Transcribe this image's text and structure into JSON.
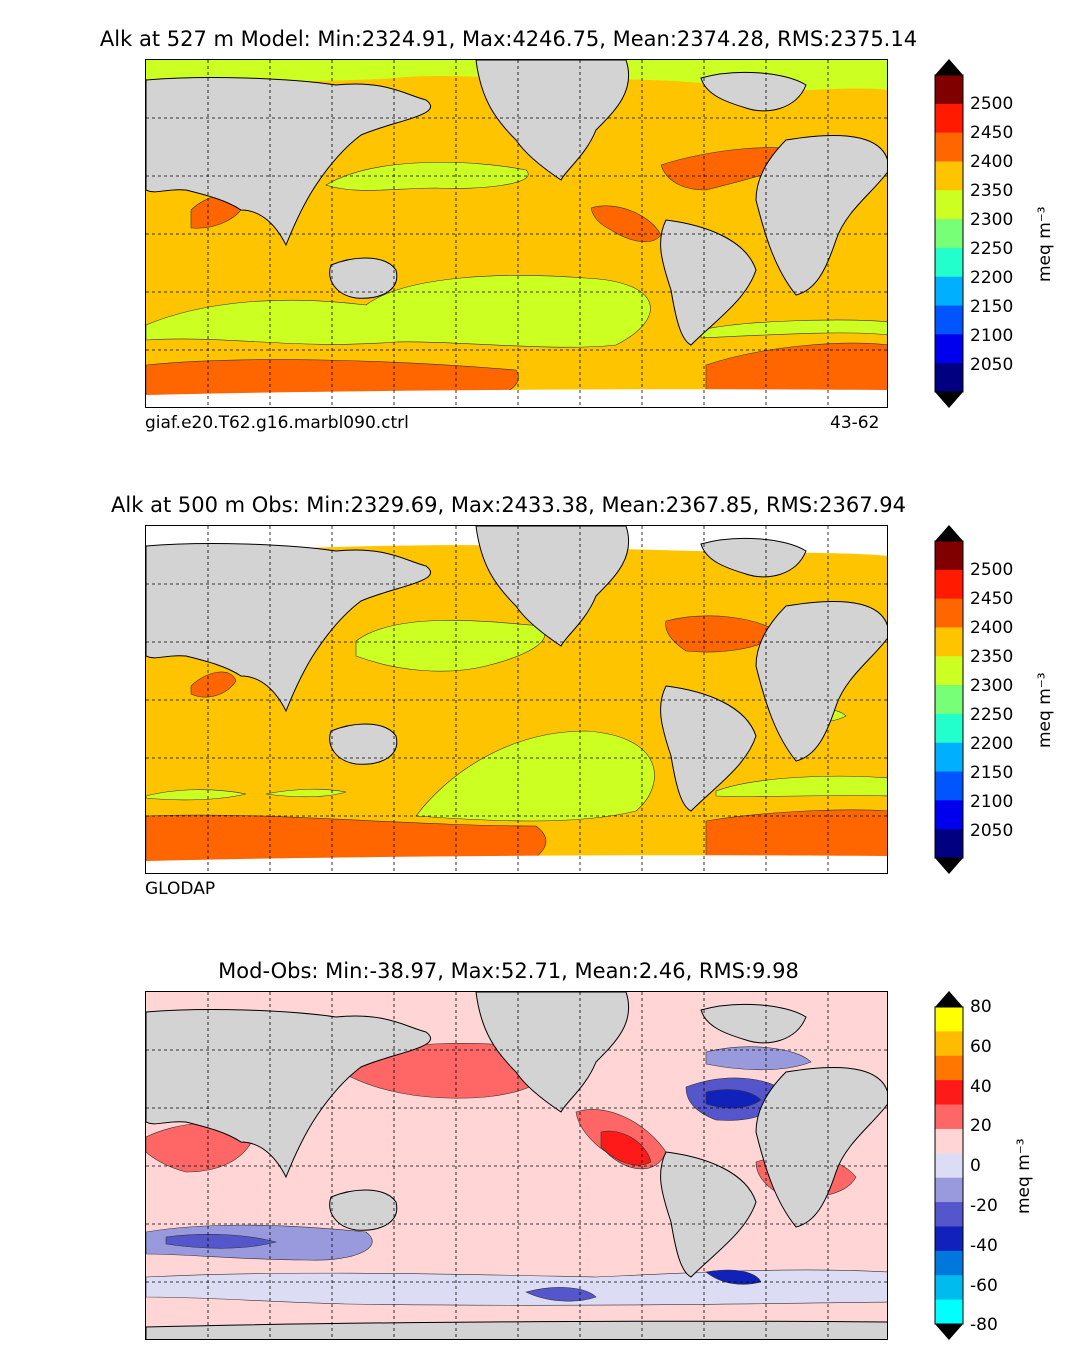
{
  "panels": [
    {
      "title": "Alk at 527 m Model: Min:2324.91, Max:4246.75, Mean:2374.28, RMS:2375.14",
      "caption_left": "giaf.e20.T62.g16.marbl090.ctrl",
      "caption_right": "43-62",
      "colorbar": {
        "unit": "meq m⁻³",
        "ticks": [
          "2500",
          "2450",
          "2400",
          "2350",
          "2300",
          "2250",
          "2200",
          "2150",
          "2100",
          "2050"
        ],
        "colors": [
          "#800000",
          "#ff1a00",
          "#ff6600",
          "#ffc400",
          "#ccff22",
          "#77ff77",
          "#22ffcc",
          "#00b0ff",
          "#0055ff",
          "#0000ee",
          "#000080"
        ],
        "extend_top": "#000000",
        "extend_bottom": "#000000"
      }
    },
    {
      "title": "Alk at 500 m Obs: Min:2329.69, Max:2433.38, Mean:2367.85, RMS:2367.94",
      "caption_left": "GLODAP",
      "caption_right": "",
      "colorbar": {
        "unit": "meq m⁻³",
        "ticks": [
          "2500",
          "2450",
          "2400",
          "2350",
          "2300",
          "2250",
          "2200",
          "2150",
          "2100",
          "2050"
        ],
        "colors": [
          "#800000",
          "#ff1a00",
          "#ff6600",
          "#ffc400",
          "#ccff22",
          "#77ff77",
          "#22ffcc",
          "#00b0ff",
          "#0055ff",
          "#0000ee",
          "#000080"
        ],
        "extend_top": "#000000",
        "extend_bottom": "#000000"
      }
    },
    {
      "title": "Mod-Obs: Min:-38.97, Max:52.71, Mean:2.46, RMS:9.98",
      "caption_left": "",
      "caption_right": "",
      "colorbar": {
        "unit": "meq m⁻³",
        "ticks": [
          "80",
          "60",
          "40",
          "20",
          "0",
          "-20",
          "-40",
          "-60",
          "-80"
        ],
        "colors": [
          "#ffff00",
          "#ffbb00",
          "#ff7700",
          "#ff1a1a",
          "#ff6666",
          "#ffd5d5",
          "#dcdcf5",
          "#9999dd",
          "#5555cc",
          "#1122bb",
          "#0077dd",
          "#00bbee",
          "#00ffff"
        ],
        "extend_top": "#000000",
        "extend_bottom": "#000000"
      }
    }
  ],
  "colors": {
    "land": "#d3d3d3",
    "ocean_background": "#ffc400",
    "diff_background": "#ffd5d5"
  },
  "chart_data": [
    {
      "type": "heatmap",
      "title": "Alk at 527 m Model: Min:2324.91, Max:4246.75, Mean:2374.28, RMS:2375.14",
      "variable": "Alk",
      "depth": "527 m",
      "min": 2324.91,
      "max": 4246.75,
      "mean": 2374.28,
      "rms": 2375.14,
      "levels": [
        2050,
        2100,
        2150,
        2200,
        2250,
        2300,
        2350,
        2400,
        2450,
        2500
      ],
      "colorbar_label": "meq m⁻³",
      "grid": true
    },
    {
      "type": "heatmap",
      "title": "Alk at 500 m Obs: Min:2329.69, Max:2433.38, Mean:2367.85, RMS:2367.94",
      "variable": "Alk",
      "depth": "500 m",
      "min": 2329.69,
      "max": 2433.38,
      "mean": 2367.85,
      "rms": 2367.94,
      "levels": [
        2050,
        2100,
        2150,
        2200,
        2250,
        2300,
        2350,
        2400,
        2450,
        2500
      ],
      "colorbar_label": "meq m⁻³",
      "grid": true
    },
    {
      "type": "heatmap",
      "title": "Mod-Obs: Min:-38.97, Max:52.71, Mean:2.46, RMS:9.98",
      "min": -38.97,
      "max": 52.71,
      "mean": 2.46,
      "rms": 9.98,
      "levels": [
        -80,
        -60,
        -40,
        -20,
        0,
        20,
        40,
        60,
        80
      ],
      "colorbar_label": "meq m⁻³",
      "grid": true
    }
  ]
}
